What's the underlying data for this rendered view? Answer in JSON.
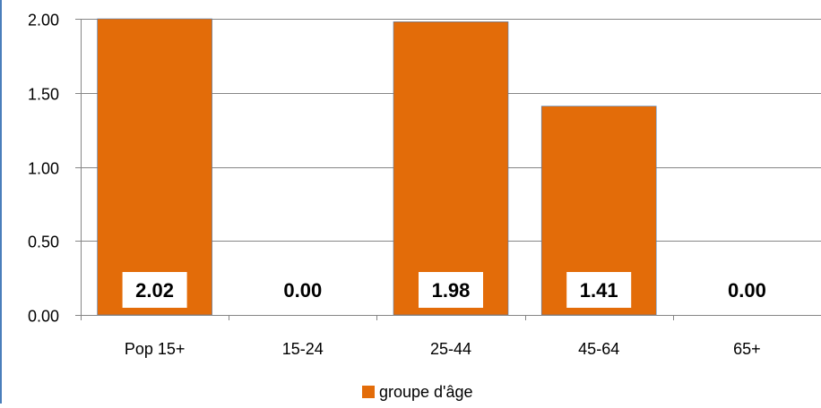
{
  "chart_data": {
    "type": "bar",
    "categories": [
      "Pop 15+",
      "15-24",
      "25-44",
      "45-64",
      "65+"
    ],
    "series": [
      {
        "name": "groupe d'âge",
        "values": [
          2.02,
          0.0,
          1.98,
          1.41,
          0.0
        ],
        "color": "#e36c09"
      }
    ],
    "data_labels": [
      "2.02",
      "0.00",
      "1.98",
      "1.41",
      "0.00"
    ],
    "yticks": [
      "0.00",
      "0.50",
      "1.00",
      "1.50",
      "2.00"
    ],
    "ylim": [
      0,
      2.0
    ],
    "grid": true,
    "legend_position": "bottom",
    "title": "",
    "xlabel": "",
    "ylabel": ""
  }
}
